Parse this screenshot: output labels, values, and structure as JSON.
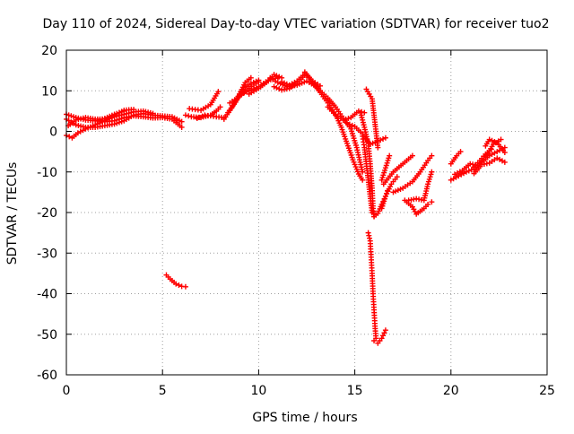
{
  "chart_data": {
    "type": "scatter",
    "title": "Day 110 of 2024, Sidereal Day-to-day VTEC variation (SDTVAR) for receiver tuo2",
    "xlabel": "GPS time / hours",
    "ylabel": "SDTVAR / TECUs",
    "xlim": [
      0,
      25
    ],
    "ylim": [
      -60,
      20
    ],
    "xticks": [
      0,
      5,
      10,
      15,
      20,
      25
    ],
    "yticks": [
      -60,
      -50,
      -40,
      -30,
      -20,
      -10,
      0,
      10,
      20
    ],
    "grid": true,
    "marker": "+",
    "color": "#ff0000",
    "series": [
      {
        "points": [
          [
            0.0,
            4.2
          ],
          [
            0.5,
            3.4
          ],
          [
            1.0,
            2.8
          ],
          [
            1.5,
            2.6
          ],
          [
            2.0,
            2.4
          ],
          [
            2.5,
            2.6
          ],
          [
            3.0,
            3.4
          ],
          [
            3.5,
            3.8
          ],
          [
            4.0,
            3.6
          ],
          [
            4.5,
            3.3
          ],
          [
            5.0,
            3.4
          ],
          [
            5.5,
            3.0
          ],
          [
            6.0,
            1.0
          ]
        ]
      },
      {
        "points": [
          [
            0.0,
            3.0
          ],
          [
            0.5,
            1.6
          ],
          [
            1.0,
            1.0
          ],
          [
            1.5,
            1.0
          ],
          [
            2.0,
            1.4
          ],
          [
            2.5,
            1.8
          ],
          [
            3.0,
            2.6
          ],
          [
            3.5,
            4.0
          ],
          [
            4.0,
            4.4
          ],
          [
            4.5,
            4.0
          ],
          [
            5.0,
            3.8
          ],
          [
            5.5,
            3.6
          ],
          [
            6.0,
            2.4
          ]
        ]
      },
      {
        "points": [
          [
            0.0,
            -1.0
          ],
          [
            0.3,
            -1.6
          ],
          [
            0.6,
            -0.4
          ],
          [
            1.0,
            0.6
          ],
          [
            1.5,
            1.6
          ],
          [
            2.0,
            2.6
          ],
          [
            2.5,
            3.6
          ],
          [
            3.0,
            4.2
          ],
          [
            3.5,
            4.8
          ],
          [
            4.0,
            5.0
          ],
          [
            4.5,
            4.4
          ]
        ]
      },
      {
        "points": [
          [
            0.1,
            1.4
          ],
          [
            0.5,
            2.8
          ],
          [
            1.0,
            3.4
          ],
          [
            1.5,
            3.0
          ],
          [
            2.0,
            3.0
          ],
          [
            2.5,
            4.0
          ],
          [
            3.0,
            5.2
          ],
          [
            3.5,
            5.4
          ]
        ]
      },
      {
        "points": [
          [
            1.6,
            2.6
          ],
          [
            2.0,
            3.2
          ],
          [
            2.5,
            4.2
          ],
          [
            3.0,
            5.0
          ]
        ]
      },
      {
        "points": [
          [
            6.2,
            4.0
          ],
          [
            6.5,
            3.6
          ],
          [
            7.0,
            3.4
          ],
          [
            7.5,
            4.0
          ],
          [
            7.8,
            5.0
          ],
          [
            8.0,
            6.0
          ]
        ]
      },
      {
        "points": [
          [
            6.4,
            5.6
          ],
          [
            7.0,
            5.2
          ],
          [
            7.5,
            6.6
          ],
          [
            7.9,
            9.8
          ]
        ]
      },
      {
        "points": [
          [
            6.8,
            3.2
          ],
          [
            7.2,
            4.0
          ],
          [
            7.8,
            3.6
          ],
          [
            8.2,
            3.4
          ]
        ]
      },
      {
        "points": [
          [
            8.2,
            3.0
          ],
          [
            8.6,
            5.8
          ],
          [
            9.0,
            9.2
          ],
          [
            9.3,
            12.0
          ],
          [
            9.6,
            13.2
          ]
        ]
      },
      {
        "points": [
          [
            8.4,
            4.6
          ],
          [
            8.8,
            7.2
          ],
          [
            9.2,
            10.4
          ],
          [
            9.6,
            11.8
          ],
          [
            10.0,
            12.6
          ]
        ]
      },
      {
        "points": [
          [
            8.5,
            7.0
          ],
          [
            9.0,
            8.6
          ],
          [
            9.5,
            10.6
          ],
          [
            10.0,
            12.2
          ]
        ]
      },
      {
        "points": [
          [
            9.0,
            9.0
          ],
          [
            9.5,
            10.0
          ],
          [
            10.0,
            11.0
          ],
          [
            10.5,
            12.6
          ],
          [
            11.0,
            13.2
          ]
        ]
      },
      {
        "points": [
          [
            9.5,
            9.2
          ],
          [
            10.0,
            10.6
          ],
          [
            10.5,
            12.4
          ],
          [
            10.8,
            14.0
          ],
          [
            11.2,
            13.2
          ]
        ]
      },
      {
        "points": [
          [
            10.6,
            13.2
          ],
          [
            11.0,
            12.0
          ],
          [
            11.5,
            11.0
          ],
          [
            12.0,
            11.4
          ],
          [
            12.5,
            12.4
          ],
          [
            13.0,
            11.0
          ]
        ]
      },
      {
        "points": [
          [
            10.8,
            11.0
          ],
          [
            11.2,
            10.2
          ],
          [
            11.6,
            10.6
          ],
          [
            12.0,
            12.0
          ],
          [
            12.4,
            13.8
          ]
        ]
      },
      {
        "points": [
          [
            11.2,
            12.2
          ],
          [
            11.6,
            11.4
          ],
          [
            12.0,
            12.4
          ],
          [
            12.4,
            14.2
          ],
          [
            12.8,
            12.4
          ],
          [
            13.2,
            11.2
          ]
        ]
      },
      {
        "points": [
          [
            12.4,
            14.6
          ],
          [
            12.8,
            12.4
          ],
          [
            13.2,
            10.0
          ],
          [
            13.6,
            8.2
          ],
          [
            14.0,
            6.0
          ],
          [
            14.4,
            3.2
          ],
          [
            14.8,
            0.6
          ],
          [
            15.1,
            -4.0
          ],
          [
            15.4,
            -10.0
          ]
        ]
      },
      {
        "points": [
          [
            12.8,
            12.0
          ],
          [
            13.2,
            9.6
          ],
          [
            13.6,
            7.0
          ],
          [
            14.0,
            4.2
          ],
          [
            14.3,
            1.0
          ],
          [
            14.6,
            -3.0
          ],
          [
            14.9,
            -7.0
          ],
          [
            15.2,
            -10.5
          ],
          [
            15.4,
            -12.0
          ]
        ]
      },
      {
        "points": [
          [
            13.6,
            6.0
          ],
          [
            14.0,
            4.0
          ],
          [
            14.4,
            2.8
          ],
          [
            14.8,
            3.4
          ],
          [
            15.2,
            5.0
          ],
          [
            15.5,
            4.6
          ]
        ]
      },
      {
        "points": [
          [
            14.6,
            2.0
          ],
          [
            15.0,
            1.2
          ],
          [
            15.4,
            -0.6
          ],
          [
            15.8,
            -3.2
          ],
          [
            16.2,
            -2.4
          ],
          [
            16.6,
            -1.6
          ]
        ]
      },
      {
        "points": [
          [
            15.3,
            4.6
          ],
          [
            15.5,
            1.0
          ],
          [
            15.7,
            -3.0
          ],
          [
            15.8,
            -8.0
          ],
          [
            15.9,
            -14.0
          ],
          [
            15.95,
            -19.0
          ],
          [
            16.0,
            -21.0
          ]
        ]
      },
      {
        "points": [
          [
            15.6,
            10.4
          ],
          [
            15.9,
            8.0
          ],
          [
            16.0,
            4.0
          ],
          [
            16.1,
            0.0
          ],
          [
            16.2,
            -4.0
          ]
        ]
      },
      {
        "points": [
          [
            15.4,
            -1.2
          ],
          [
            15.5,
            -4.0
          ],
          [
            15.6,
            -8.0
          ],
          [
            15.7,
            -12.0
          ],
          [
            15.8,
            -16.0
          ],
          [
            15.9,
            -20.0
          ]
        ]
      },
      {
        "points": [
          [
            16.0,
            -21.0
          ],
          [
            16.2,
            -20.2
          ],
          [
            16.4,
            -18.0
          ],
          [
            16.6,
            -16.0
          ],
          [
            16.7,
            -14.6
          ]
        ]
      },
      {
        "points": [
          [
            16.4,
            -12.0
          ],
          [
            16.6,
            -9.0
          ],
          [
            16.8,
            -6.0
          ]
        ]
      },
      {
        "points": [
          [
            16.5,
            -13.0
          ],
          [
            17.0,
            -10.0
          ],
          [
            17.5,
            -8.0
          ],
          [
            18.0,
            -6.0
          ]
        ]
      },
      {
        "points": [
          [
            16.4,
            -19.0
          ],
          [
            16.6,
            -16.0
          ],
          [
            16.9,
            -13.0
          ],
          [
            17.2,
            -11.2
          ]
        ]
      },
      {
        "points": [
          [
            17.0,
            -15.0
          ],
          [
            17.5,
            -14.0
          ],
          [
            18.0,
            -12.4
          ],
          [
            18.4,
            -10.0
          ],
          [
            18.8,
            -7.2
          ],
          [
            19.0,
            -6.0
          ]
        ]
      },
      {
        "points": [
          [
            17.6,
            -17.0
          ],
          [
            18.0,
            -18.6
          ],
          [
            18.2,
            -20.4
          ],
          [
            18.6,
            -19.0
          ],
          [
            18.8,
            -18.0
          ],
          [
            19.0,
            -17.4
          ]
        ]
      },
      {
        "points": [
          [
            17.8,
            -17.0
          ],
          [
            18.2,
            -16.6
          ],
          [
            18.6,
            -17.0
          ],
          [
            18.8,
            -13.0
          ],
          [
            19.0,
            -10.0
          ]
        ]
      },
      {
        "points": [
          [
            15.7,
            -25.0
          ],
          [
            15.8,
            -27.0
          ],
          [
            15.85,
            -31.0
          ],
          [
            15.9,
            -35.0
          ],
          [
            15.95,
            -40.0
          ],
          [
            16.0,
            -44.0
          ],
          [
            16.05,
            -48.0
          ],
          [
            16.1,
            -51.0
          ]
        ]
      },
      {
        "points": [
          [
            16.0,
            -51.6
          ],
          [
            16.2,
            -52.2
          ],
          [
            16.4,
            -51.0
          ],
          [
            16.6,
            -49.0
          ]
        ]
      },
      {
        "points": [
          [
            5.2,
            -35.4
          ],
          [
            5.4,
            -36.4
          ],
          [
            5.7,
            -37.6
          ],
          [
            6.0,
            -38.2
          ],
          [
            6.2,
            -38.3
          ]
        ]
      },
      {
        "points": [
          [
            20.0,
            -8.0
          ],
          [
            20.3,
            -6.0
          ],
          [
            20.5,
            -5.0
          ]
        ]
      },
      {
        "points": [
          [
            20.0,
            -12.0
          ],
          [
            20.4,
            -11.0
          ],
          [
            20.8,
            -10.0
          ],
          [
            21.2,
            -9.2
          ],
          [
            21.6,
            -7.6
          ],
          [
            22.0,
            -6.0
          ],
          [
            22.4,
            -5.0
          ],
          [
            22.8,
            -4.0
          ]
        ]
      },
      {
        "points": [
          [
            20.2,
            -10.6
          ],
          [
            20.6,
            -9.6
          ],
          [
            21.0,
            -8.0
          ],
          [
            21.4,
            -8.4
          ],
          [
            21.8,
            -6.4
          ],
          [
            22.2,
            -3.2
          ],
          [
            22.6,
            -2.0
          ]
        ]
      },
      {
        "points": [
          [
            21.2,
            -10.4
          ],
          [
            21.6,
            -8.2
          ],
          [
            22.0,
            -7.8
          ],
          [
            22.4,
            -6.6
          ],
          [
            22.8,
            -7.6
          ]
        ]
      },
      {
        "points": [
          [
            21.8,
            -3.6
          ],
          [
            22.0,
            -2.0
          ],
          [
            22.4,
            -2.8
          ],
          [
            22.8,
            -5.2
          ]
        ]
      },
      {
        "points": [
          [
            21.2,
            -8.8
          ],
          [
            21.5,
            -7.2
          ],
          [
            21.8,
            -5.6
          ],
          [
            22.1,
            -4.4
          ]
        ]
      }
    ]
  }
}
